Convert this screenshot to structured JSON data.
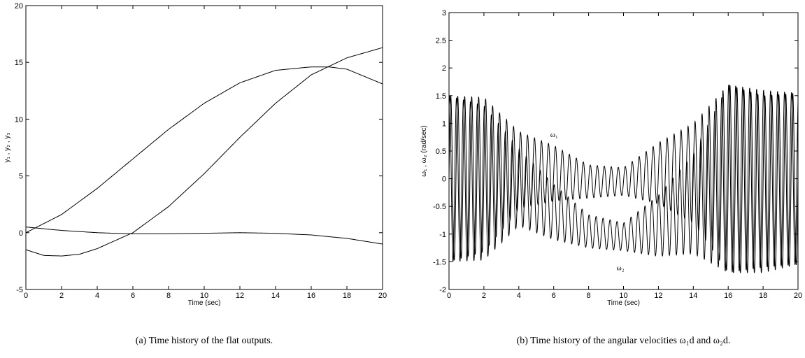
{
  "chart_data": [
    {
      "type": "line",
      "xlabel": "Time (sec)",
      "ylabel": "y₁ , y₂ , y₃",
      "xlim": [
        0,
        20
      ],
      "ylim": [
        -5,
        20
      ],
      "xticks": [
        "0",
        "2",
        "4",
        "6",
        "8",
        "10",
        "12",
        "14",
        "16",
        "18",
        "20"
      ],
      "yticks": [
        "-5",
        "0",
        "5",
        "10",
        "15",
        "20"
      ],
      "caption": "(a) Time history of the flat outputs.",
      "grid": false,
      "series": [
        {
          "x": [
            0,
            2,
            4,
            6,
            8,
            10,
            12,
            14,
            16,
            17,
            18,
            20
          ],
          "values": [
            0,
            1.6,
            3.9,
            6.5,
            9.1,
            11.4,
            13.2,
            14.3,
            14.6,
            14.6,
            14.4,
            13.1
          ]
        },
        {
          "x": [
            0,
            1,
            2,
            3,
            4,
            6,
            8,
            10,
            12,
            14,
            16,
            18,
            20
          ],
          "values": [
            -1.5,
            -2.0,
            -2.05,
            -1.9,
            -1.4,
            0.0,
            2.3,
            5.2,
            8.4,
            11.4,
            13.9,
            15.4,
            16.3
          ]
        },
        {
          "x": [
            0,
            2,
            4,
            6,
            8,
            10,
            12,
            14,
            16,
            18,
            20
          ],
          "values": [
            0.5,
            0.2,
            0.0,
            -0.1,
            -0.1,
            -0.05,
            0.0,
            -0.05,
            -0.2,
            -0.5,
            -1.0
          ]
        }
      ]
    },
    {
      "type": "line",
      "xlabel": "Time (sec)",
      "ylabel": "ω₁ , ω₂ (rad/sec)",
      "xlim": [
        0,
        20
      ],
      "ylim": [
        -2,
        3
      ],
      "xticks": [
        "0",
        "2",
        "4",
        "6",
        "8",
        "10",
        "12",
        "14",
        "16",
        "18",
        "20"
      ],
      "yticks": [
        "-2",
        "-1.5",
        "-1",
        "-0.5",
        "0",
        "0.5",
        "1",
        "1.5",
        "2",
        "2.5",
        "3"
      ],
      "caption": "(b) Time history of the angular velocities ω₁d and ω₂d.",
      "grid": false,
      "annotations": [
        {
          "text": "ω₁",
          "x": 5.8,
          "y": 0.75
        },
        {
          "text": "ω₂",
          "x": 9.6,
          "y": -1.65
        }
      ],
      "oscillation": {
        "cycles_per_sec": 2.5,
        "samples_per_sec": 100
      },
      "series": [
        {
          "center_x": [
            0,
            4,
            6,
            8,
            10,
            12,
            14,
            16,
            18,
            20
          ],
          "center_y": [
            0.0,
            0.15,
            0.1,
            -0.05,
            -0.05,
            0.1,
            0.1,
            0.0,
            -0.1,
            0.0
          ],
          "amplitude_x": [
            0,
            2,
            4,
            6,
            8,
            10,
            12,
            14,
            16,
            18,
            20
          ],
          "amplitude_y": [
            1.5,
            1.4,
            0.7,
            0.5,
            0.3,
            0.25,
            0.55,
            0.9,
            1.7,
            1.6,
            1.55
          ]
        },
        {
          "center_x": [
            0,
            4,
            6,
            8,
            10,
            12,
            14,
            16,
            18,
            20
          ],
          "center_y": [
            0.0,
            -0.15,
            -0.6,
            -0.95,
            -1.05,
            -0.85,
            -0.45,
            0.0,
            0.0,
            0.0
          ],
          "amplitude_x": [
            0,
            2,
            4,
            6,
            8,
            10,
            12,
            14,
            16,
            18,
            20
          ],
          "amplitude_y": [
            1.5,
            1.4,
            0.7,
            0.5,
            0.3,
            0.25,
            0.55,
            0.9,
            1.7,
            1.6,
            1.55
          ]
        }
      ]
    }
  ]
}
